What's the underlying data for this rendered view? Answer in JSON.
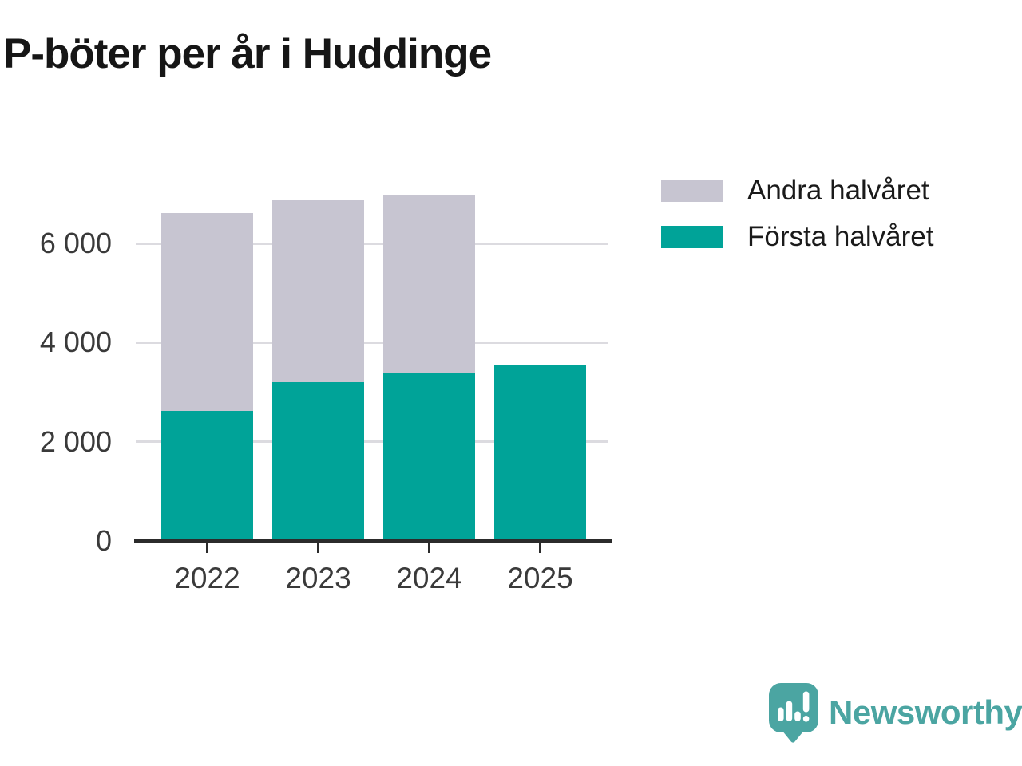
{
  "title": "P-böter per år i Huddinge",
  "chart_data": {
    "type": "bar",
    "stacked": true,
    "title": "P-böter per år i Huddinge",
    "xlabel": "",
    "ylabel": "",
    "categories": [
      "2022",
      "2023",
      "2024",
      "2025"
    ],
    "series": [
      {
        "name": "Första halvåret",
        "color": "#00a398",
        "values": [
          2620,
          3200,
          3390,
          3540
        ]
      },
      {
        "name": "Andra halvåret",
        "color": "#c7c5d1",
        "values": [
          3990,
          3670,
          3580,
          null
        ]
      }
    ],
    "ylim": [
      0,
      7100
    ],
    "yticks": [
      {
        "value": 0,
        "label": "0"
      },
      {
        "value": 2000,
        "label": "2 000"
      },
      {
        "value": 4000,
        "label": "4 000"
      },
      {
        "value": 6000,
        "label": "6 000"
      }
    ],
    "grid": "horizontal",
    "legend_position": "top-right"
  },
  "legend": {
    "items": [
      {
        "label": "Andra halvåret",
        "color": "#c7c5d1"
      },
      {
        "label": "Första halvåret",
        "color": "#00a398"
      }
    ]
  },
  "colors": {
    "series_first_half": "#00a398",
    "series_second_half": "#c7c5d1",
    "gridline": "#dcdbe0",
    "axis": "#2b2b2b",
    "tick_text": "#3a3a3a",
    "title_text": "#161616",
    "brand_teal": "#4ba5a2"
  },
  "branding": {
    "wordmark": "Newsworthy",
    "logo_icon": "newsworthy-speech-bubble-bar-chart-icon"
  }
}
